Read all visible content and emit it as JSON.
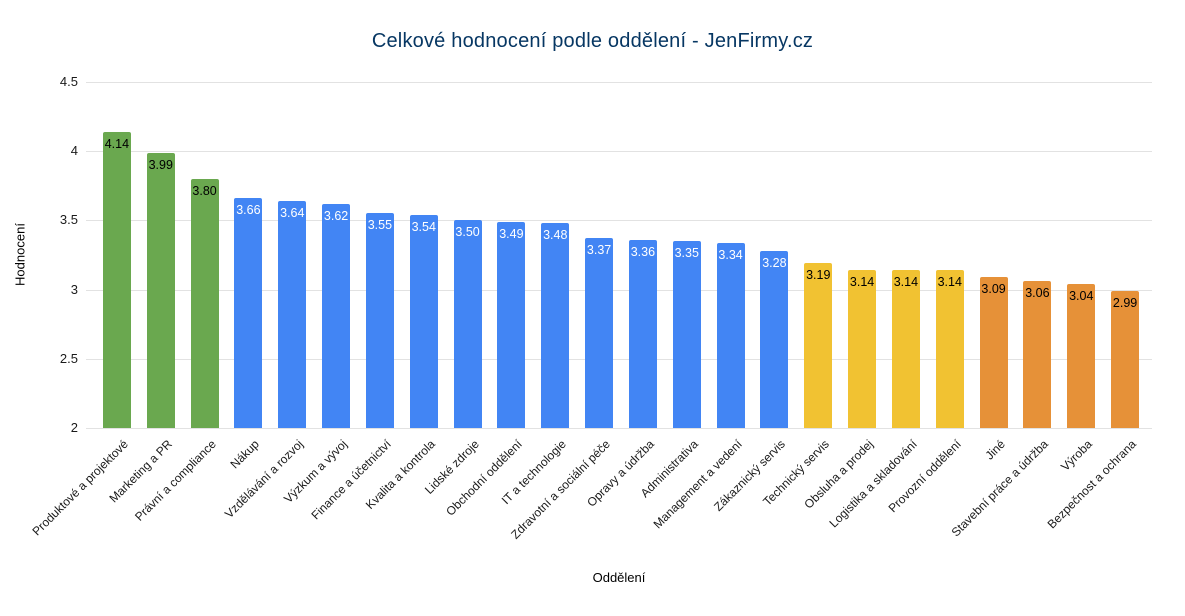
{
  "chart_data": {
    "type": "bar",
    "title": "Celkové hodnocení podle oddělení - JenFirmy.cz",
    "xlabel": "Oddělení",
    "ylabel": "Hodnocení",
    "ylim": [
      2,
      4.5
    ],
    "ytick_labels": [
      "2",
      "2.5",
      "3",
      "3.5",
      "4",
      "4.5"
    ],
    "grid": true,
    "legend": "none",
    "value_labels_position": "inside-top",
    "colors": {
      "title": "#073763",
      "green": "#6aa84f",
      "blue": "#4285f4",
      "yellow": "#f1c232",
      "orange": "#e69138",
      "gridline": "#e2e2e2",
      "label_dark": "#000000",
      "label_light": "#ffffff"
    },
    "categories": [
      "Produktové a projektové",
      "Marketing a PR",
      "Právní a compliance",
      "Nákup",
      "Vzdělávání a rozvoj",
      "Výzkum a vývoj",
      "Finance a účetnictví",
      "Kvalita a kontrola",
      "Lidské zdroje",
      "Obchodní oddělení",
      "IT a technologie",
      "Zdravotní a sociální péče",
      "Opravy a údržba",
      "Administrativa",
      "Management a vedení",
      "Zákaznický servis",
      "Technický servis",
      "Obsluha a prodej",
      "Logistika a skladování",
      "Provozní oddělení",
      "Jiné",
      "Stavební práce a údržba",
      "Výroba",
      "Bezpečnost a ochrana"
    ],
    "values": [
      4.14,
      3.99,
      3.8,
      3.66,
      3.64,
      3.62,
      3.55,
      3.54,
      3.5,
      3.49,
      3.48,
      3.37,
      3.36,
      3.35,
      3.34,
      3.28,
      3.19,
      3.14,
      3.14,
      3.14,
      3.09,
      3.06,
      3.04,
      2.99
    ],
    "value_labels": [
      "4.14",
      "3.99",
      "3.80",
      "3.66",
      "3.64",
      "3.62",
      "3.55",
      "3.54",
      "3.50",
      "3.49",
      "3.48",
      "3.37",
      "3.36",
      "3.35",
      "3.34",
      "3.28",
      "3.19",
      "3.14",
      "3.14",
      "3.14",
      "3.09",
      "3.06",
      "3.04",
      "2.99"
    ],
    "bar_color_keys": [
      "green",
      "green",
      "green",
      "blue",
      "blue",
      "blue",
      "blue",
      "blue",
      "blue",
      "blue",
      "blue",
      "blue",
      "blue",
      "blue",
      "blue",
      "blue",
      "yellow",
      "yellow",
      "yellow",
      "yellow",
      "orange",
      "orange",
      "orange",
      "orange"
    ],
    "value_label_color_keys": [
      "label_dark",
      "label_dark",
      "label_dark",
      "label_light",
      "label_light",
      "label_light",
      "label_light",
      "label_light",
      "label_light",
      "label_light",
      "label_light",
      "label_light",
      "label_light",
      "label_light",
      "label_light",
      "label_light",
      "label_dark",
      "label_dark",
      "label_dark",
      "label_dark",
      "label_dark",
      "label_dark",
      "label_dark",
      "label_dark"
    ]
  }
}
